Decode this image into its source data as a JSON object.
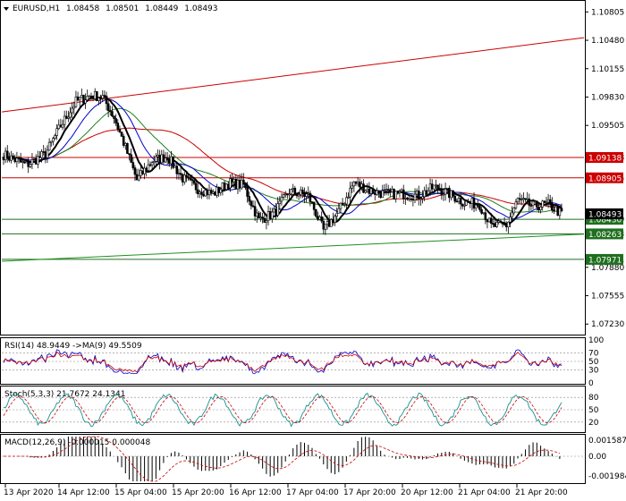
{
  "header": {
    "symbol": "EURUSD,H1",
    "open": "1.08458",
    "high": "1.08501",
    "low": "1.08449",
    "close": "1.08493"
  },
  "price_axis": [
    "1.10805",
    "1.10480",
    "1.10155",
    "1.09830",
    "1.09505",
    "1.09138",
    "1.08905",
    "1.08430",
    "1.08263",
    "1.07971",
    "1.07880",
    "1.07555",
    "1.07230"
  ],
  "levels": [
    {
      "label": "1.09138",
      "value": 1.09138,
      "color": "#cc0000"
    },
    {
      "label": "1.08905",
      "value": 1.08905,
      "color": "#cc0000"
    },
    {
      "label": "1.08430",
      "value": 1.0843,
      "color": "#1f6f1f"
    },
    {
      "label": "1.08263",
      "value": 1.08263,
      "color": "#1f6f1f"
    },
    {
      "label": "1.07971",
      "value": 1.07971,
      "color": "#1f6f1f"
    }
  ],
  "current_price": {
    "label": "1.08493",
    "value": 1.08493,
    "color": "#000000"
  },
  "time_axis": [
    "13 Apr 2020",
    "14 Apr 12:00",
    "15 Apr 04:00",
    "15 Apr 20:00",
    "16 Apr 12:00",
    "17 Apr 04:00",
    "17 Apr 20:00",
    "20 Apr 12:00",
    "21 Apr 04:00",
    "21 Apr 20:00"
  ],
  "rsi": {
    "label": "RSI(14) 48.9449  ->MA(9) 49.5509",
    "axis": [
      "100",
      "70",
      "50",
      "30",
      "0"
    ],
    "levels": [
      70,
      50,
      30
    ]
  },
  "stoch": {
    "label": "Stoch(5,3,3) 21.7672 24.1341",
    "axis": [
      "80",
      "50",
      "20"
    ],
    "levels": [
      80,
      50,
      20
    ]
  },
  "macd": {
    "label": "MACD(12,26,9) -0.000015 0.000048",
    "axis": [
      "0.001587",
      "0.00",
      "-0.001984"
    ]
  },
  "colors": {
    "bull": "#ffffff",
    "bear": "#000000",
    "ma_fast": "#000000",
    "ma_mid": "#0000cc",
    "ma_slow": "#1f7f1f",
    "ma_long": "#cc0000",
    "channel_top": "#cc0000",
    "channel_bottom": "#1f8f1f"
  },
  "chart_data": {
    "type": "line",
    "title": "EURUSD,H1",
    "ylim": [
      1.0713,
      1.1088
    ],
    "x": [
      "13 Apr 2020",
      "14 Apr 12:00",
      "15 Apr 04:00",
      "15 Apr 20:00",
      "16 Apr 12:00",
      "17 Apr 04:00",
      "17 Apr 20:00",
      "20 Apr 12:00",
      "21 Apr 04:00",
      "21 Apr 20:00"
    ],
    "series": [
      {
        "values": [
          1.0917,
          1.0985,
          1.09,
          1.088,
          1.0845,
          1.0842,
          1.088,
          1.087,
          1.0838,
          1.0849
        ]
      }
    ]
  }
}
